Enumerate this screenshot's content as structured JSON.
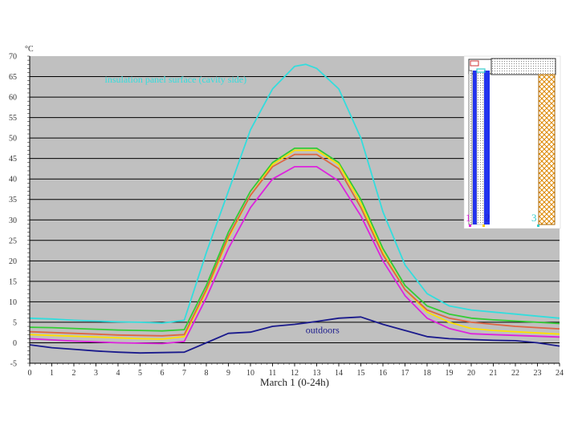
{
  "chart_data": {
    "type": "line",
    "xlabel": "March 1 (0-24h)",
    "y_unit_label": "°C",
    "xlim": [
      0,
      24
    ],
    "ylim": [
      -5,
      70
    ],
    "x_ticks": [
      "0",
      "1",
      "2",
      "3",
      "4",
      "5",
      "6",
      "7",
      "8",
      "9",
      "10",
      "11",
      "12",
      "13",
      "14",
      "15",
      "16",
      "17",
      "18",
      "19",
      "20",
      "21",
      "22",
      "23",
      "24"
    ],
    "y_ticks": [
      "-5",
      "0",
      "5",
      "10",
      "15",
      "20",
      "25",
      "30",
      "35",
      "40",
      "45",
      "50",
      "55",
      "60",
      "65",
      "70"
    ],
    "grid": true,
    "plot_background": "#c0c0c0",
    "annotations": [
      {
        "text": "insulation panel surface (cavity side)",
        "x": 3.4,
        "y": 63.5,
        "color": "#33dddd"
      },
      {
        "text": "outdoors",
        "x": 12.5,
        "y": 2.3,
        "color": "#1a1a8c"
      }
    ],
    "series": [
      {
        "color": "#33dddd",
        "x": [
          0,
          1,
          2,
          3,
          4,
          5,
          6,
          7,
          8,
          9,
          10,
          11,
          12,
          12.5,
          13,
          14,
          15,
          16,
          17,
          18,
          19,
          20,
          21,
          22,
          23,
          24
        ],
        "y": [
          6,
          5.8,
          5.5,
          5.3,
          5.1,
          5,
          4.8,
          5.5,
          22,
          37,
          52,
          62,
          67.5,
          68,
          67,
          62,
          50,
          32,
          19,
          12,
          9,
          8,
          7.5,
          7,
          6.5,
          6
        ]
      },
      {
        "color": "#33cc33",
        "x": [
          0,
          1,
          2,
          3,
          4,
          5,
          6,
          7,
          8,
          9,
          10,
          11,
          12,
          13,
          14,
          15,
          16,
          17,
          18,
          19,
          20,
          21,
          22,
          23,
          24
        ],
        "y": [
          3.8,
          3.7,
          3.5,
          3.3,
          3.1,
          3,
          2.9,
          3.2,
          14,
          27,
          37,
          44,
          47.5,
          47.5,
          44,
          35,
          23,
          14,
          9,
          7,
          6,
          5.6,
          5.3,
          5,
          4.7
        ]
      },
      {
        "color": "#ffe000",
        "x": [
          0,
          1,
          2,
          3,
          4,
          5,
          6,
          7,
          8,
          9,
          10,
          11,
          12,
          13,
          14,
          15,
          16,
          17,
          18,
          19,
          20,
          21,
          22,
          23,
          24
        ],
        "y": [
          2,
          1.8,
          1.6,
          1.4,
          1.2,
          1,
          0.9,
          1.5,
          12.5,
          25.5,
          36,
          43.5,
          47,
          47,
          43.5,
          34,
          22,
          13,
          7.5,
          5,
          3.5,
          3,
          2.7,
          2.4,
          2.1
        ]
      },
      {
        "color": "#dd6644",
        "x": [
          0,
          1,
          2,
          3,
          4,
          5,
          6,
          7,
          8,
          9,
          10,
          11,
          12,
          13,
          14,
          15,
          16,
          17,
          18,
          19,
          20,
          21,
          22,
          23,
          24
        ],
        "y": [
          2.7,
          2.5,
          2.3,
          2.1,
          1.9,
          1.8,
          1.7,
          2,
          13,
          26,
          36,
          43,
          46,
          46,
          42.5,
          33,
          21.5,
          13,
          8,
          6,
          5,
          4.5,
          4,
          3.7,
          3.4
        ]
      },
      {
        "color": "#dd22dd",
        "x": [
          0,
          1,
          2,
          3,
          4,
          5,
          6,
          7,
          8,
          9,
          10,
          11,
          12,
          13,
          14,
          15,
          16,
          17,
          18,
          19,
          20,
          21,
          22,
          23,
          24
        ],
        "y": [
          1,
          0.7,
          0.4,
          0.2,
          0,
          -0.1,
          -0.2,
          0.3,
          11,
          23,
          33,
          40,
          43,
          43,
          39.5,
          31,
          20,
          11.5,
          6,
          3.5,
          2.2,
          2,
          1.8,
          1.6,
          1.4
        ]
      },
      {
        "color": "#1a1a8c",
        "x": [
          0,
          1,
          2,
          3,
          4,
          5,
          6,
          7,
          8,
          9,
          10,
          11,
          12,
          13,
          14,
          15,
          16,
          17,
          18,
          19,
          20,
          21,
          22,
          23,
          24
        ],
        "y": [
          -0.5,
          -1.2,
          -1.6,
          -2,
          -2.3,
          -2.5,
          -2.4,
          -2.3,
          0,
          2.3,
          2.6,
          4,
          4.5,
          5.2,
          6,
          6.3,
          4.5,
          3,
          1.5,
          1,
          0.8,
          0.6,
          0.5,
          0,
          -0.8
        ]
      }
    ]
  },
  "inset": {
    "labels": [
      "1",
      "2",
      "3"
    ],
    "colors": {
      "label1": "#dd22dd",
      "label2": "#2222cc",
      "label3": "#33cccc",
      "hatch": "#dd8800",
      "panel_blue": "#2233ee",
      "dots": "#888888"
    }
  }
}
